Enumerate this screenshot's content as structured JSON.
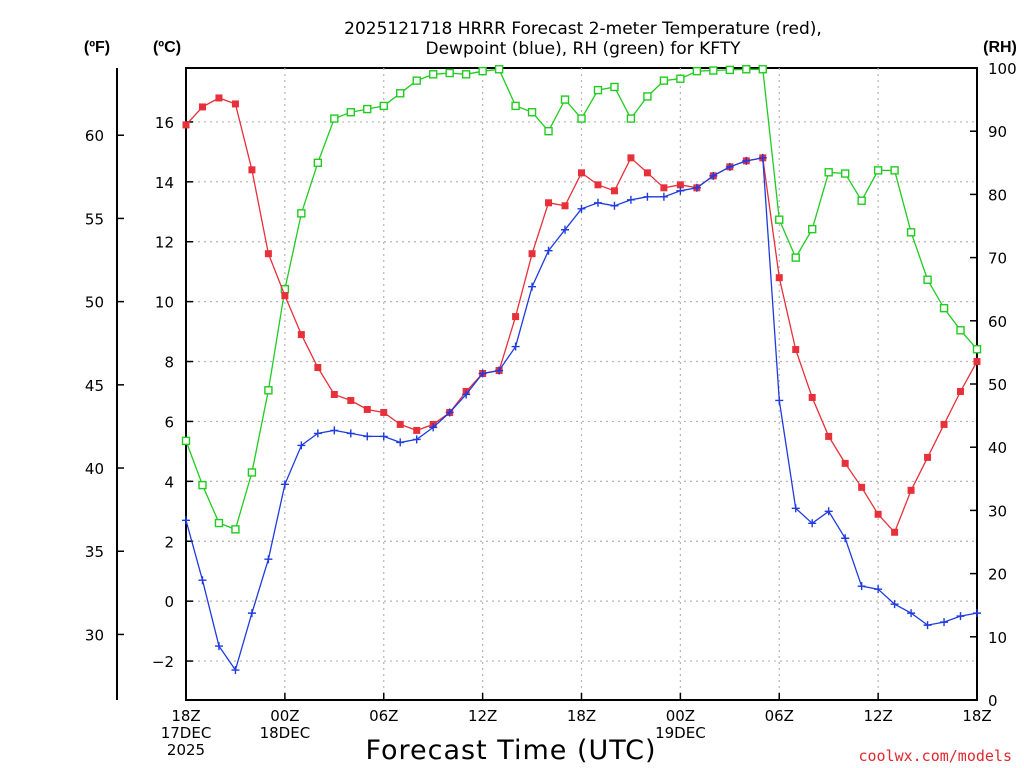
{
  "chart_data": {
    "type": "line",
    "title_lines": [
      "2025121718 HRRR Forecast 2-meter Temperature (red),",
      "Dewpoint (blue), RH (green) for KFTY"
    ],
    "unit_labels": {
      "fahrenheit": "(ºF)",
      "celsius": "(ºC)",
      "rh": "(RH)"
    },
    "xlabel": "Forecast Time (UTC)",
    "credit": "coolwx.com/models",
    "x_range_hours": [
      0,
      48
    ],
    "x_ticks": [
      {
        "hour": 0,
        "lines": [
          "18Z",
          "17DEC",
          "2025"
        ]
      },
      {
        "hour": 6,
        "lines": [
          "00Z",
          "18DEC"
        ]
      },
      {
        "hour": 12,
        "lines": [
          "06Z"
        ]
      },
      {
        "hour": 18,
        "lines": [
          "12Z"
        ]
      },
      {
        "hour": 24,
        "lines": [
          "18Z"
        ]
      },
      {
        "hour": 30,
        "lines": [
          "00Z",
          "19DEC"
        ]
      },
      {
        "hour": 36,
        "lines": [
          "06Z"
        ]
      },
      {
        "hour": 42,
        "lines": [
          "12Z"
        ]
      },
      {
        "hour": 48,
        "lines": [
          "18Z"
        ]
      }
    ],
    "celsius_axis": {
      "range": [
        -3.3,
        17.8
      ],
      "ticks": [
        -2,
        0,
        2,
        4,
        6,
        8,
        10,
        12,
        14,
        16
      ]
    },
    "fahrenheit_axis": {
      "ticks": [
        30,
        35,
        40,
        45,
        50,
        55,
        60
      ]
    },
    "rh_axis": {
      "range": [
        0,
        100
      ],
      "ticks": [
        0,
        10,
        20,
        30,
        40,
        50,
        60,
        70,
        80,
        90,
        100
      ]
    },
    "grid": true,
    "series": [
      {
        "name": "Temperature",
        "unit": "C",
        "color": "#e8303a",
        "marker": "square-filled",
        "x": [
          0,
          1,
          2,
          3,
          4,
          5,
          6,
          7,
          8,
          9,
          10,
          11,
          12,
          13,
          14,
          15,
          16,
          17,
          18,
          19,
          20,
          21,
          22,
          23,
          24,
          25,
          26,
          27,
          28,
          29,
          30,
          31,
          32,
          33,
          34,
          35,
          36,
          37,
          38,
          39,
          40,
          41,
          42,
          43,
          44,
          45,
          46,
          47,
          48
        ],
        "values": [
          15.9,
          16.5,
          16.8,
          16.6,
          14.4,
          11.6,
          10.2,
          8.9,
          7.8,
          6.9,
          6.7,
          6.4,
          6.3,
          5.9,
          5.7,
          5.9,
          6.3,
          7.0,
          7.6,
          7.7,
          9.5,
          11.6,
          13.3,
          13.2,
          14.3,
          13.9,
          13.7,
          14.8,
          14.3,
          13.8,
          13.9,
          13.8,
          14.2,
          14.5,
          14.7,
          14.8,
          10.8,
          8.4,
          6.8,
          5.5,
          4.6,
          3.8,
          2.9,
          2.3,
          3.7,
          4.8,
          5.9,
          7.0,
          8.0
        ]
      },
      {
        "name": "Dewpoint",
        "unit": "C",
        "color": "#1f3be0",
        "marker": "plus",
        "x": [
          0,
          1,
          2,
          3,
          4,
          5,
          6,
          7,
          8,
          9,
          10,
          11,
          12,
          13,
          14,
          15,
          16,
          17,
          18,
          19,
          20,
          21,
          22,
          23,
          24,
          25,
          26,
          27,
          28,
          29,
          30,
          31,
          32,
          33,
          34,
          35,
          36,
          37,
          38,
          39,
          40,
          41,
          42,
          43,
          44,
          45,
          46,
          47,
          48
        ],
        "values": [
          2.7,
          0.7,
          -1.5,
          -2.3,
          -0.4,
          1.4,
          3.9,
          5.2,
          5.6,
          5.7,
          5.6,
          5.5,
          5.5,
          5.3,
          5.4,
          5.8,
          6.3,
          6.9,
          7.6,
          7.7,
          8.5,
          10.5,
          11.7,
          12.4,
          13.1,
          13.3,
          13.2,
          13.4,
          13.5,
          13.5,
          13.7,
          13.8,
          14.2,
          14.5,
          14.7,
          14.8,
          6.7,
          3.1,
          2.6,
          3.0,
          2.1,
          0.5,
          0.4,
          -0.1,
          -0.4,
          -0.8,
          -0.7,
          -0.5,
          -0.4
        ]
      },
      {
        "name": "RH",
        "unit": "%",
        "color": "#20cc20",
        "marker": "square-open",
        "x": [
          0,
          1,
          2,
          3,
          4,
          5,
          6,
          7,
          8,
          9,
          10,
          11,
          12,
          13,
          14,
          15,
          16,
          17,
          18,
          19,
          20,
          21,
          22,
          23,
          24,
          25,
          26,
          27,
          28,
          29,
          30,
          31,
          32,
          33,
          34,
          35,
          36,
          37,
          38,
          39,
          40,
          41,
          42,
          43,
          44,
          45,
          46,
          47,
          48
        ],
        "values": [
          41,
          34,
          28,
          27,
          36,
          49,
          65,
          77,
          85,
          92,
          93,
          93.5,
          94,
          96,
          98,
          99,
          99.2,
          99,
          99.5,
          99.8,
          94,
          93,
          90,
          95,
          92,
          96.5,
          97,
          92,
          95.5,
          98,
          98.3,
          99.5,
          99.6,
          99.7,
          99.8,
          99.8,
          76,
          70,
          74.5,
          83.5,
          83.3,
          79,
          83.8,
          83.8,
          74,
          66.5,
          62,
          58.5,
          55.5
        ]
      }
    ]
  }
}
